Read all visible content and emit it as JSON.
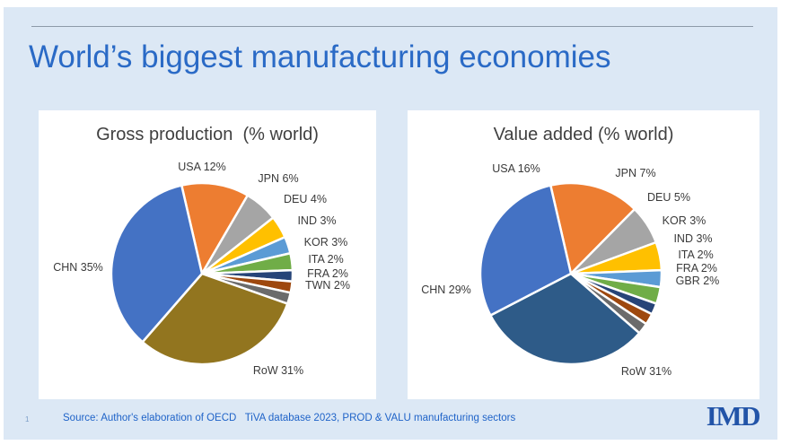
{
  "slide": {
    "title": "World’s biggest manufacturing economies",
    "title_color": "#2A6AC6",
    "background_color": "#DCE8F5",
    "footer": {
      "page_number": "1",
      "source": "Source: Author's elaboration of OECD   TiVA database 2023, PROD & VALU manufacturing sectors",
      "source_color": "#1F63C8",
      "logo_text": "IMD",
      "logo_color": "#2254A8"
    }
  },
  "chart_data": [
    {
      "type": "pie",
      "title": "Gross production  (% world)",
      "unit": "% of world total",
      "legend_position": "none",
      "labels": "outside",
      "start_angle_deg": -13,
      "slices": [
        {
          "label": "USA",
          "value": 12,
          "color": "#ED7D31"
        },
        {
          "label": "JPN",
          "value": 6,
          "color": "#A5A5A5"
        },
        {
          "label": "DEU",
          "value": 4,
          "color": "#FFC000"
        },
        {
          "label": "IND",
          "value": 3,
          "color": "#5B9BD5"
        },
        {
          "label": "KOR",
          "value": 3,
          "color": "#70AD47"
        },
        {
          "label": "ITA",
          "value": 2,
          "color": "#264478"
        },
        {
          "label": "FRA",
          "value": 2,
          "color": "#9E480E"
        },
        {
          "label": "TWN",
          "value": 2,
          "color": "#6B6B6B"
        },
        {
          "label": "RoW",
          "value": 31,
          "color": "#92751F"
        },
        {
          "label": "CHN",
          "value": 35,
          "color": "#4472C4"
        }
      ]
    },
    {
      "type": "pie",
      "title": "Value added (% world)",
      "unit": "% of world total",
      "legend_position": "none",
      "labels": "outside",
      "start_angle_deg": -13,
      "slices": [
        {
          "label": "USA",
          "value": 16,
          "color": "#ED7D31"
        },
        {
          "label": "JPN",
          "value": 7,
          "color": "#A5A5A5"
        },
        {
          "label": "DEU",
          "value": 5,
          "color": "#FFC000"
        },
        {
          "label": "KOR",
          "value": 3,
          "color": "#5B9BD5"
        },
        {
          "label": "IND",
          "value": 3,
          "color": "#70AD47"
        },
        {
          "label": "ITA",
          "value": 2,
          "color": "#264478"
        },
        {
          "label": "FRA",
          "value": 2,
          "color": "#9E480E"
        },
        {
          "label": "GBR",
          "value": 2,
          "color": "#6B6B6B"
        },
        {
          "label": "RoW",
          "value": 31,
          "color": "#2E5B88"
        },
        {
          "label": "CHN",
          "value": 29,
          "color": "#4472C4"
        }
      ]
    }
  ]
}
